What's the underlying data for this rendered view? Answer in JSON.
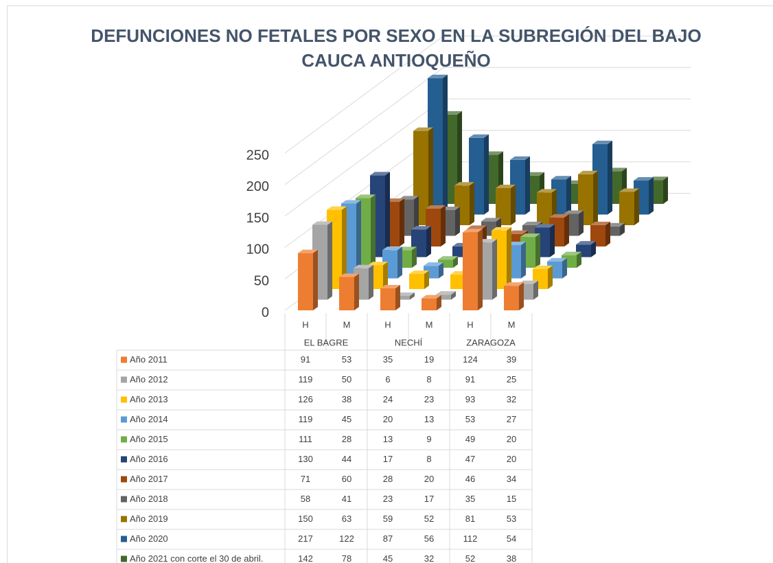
{
  "chart_data": {
    "type": "bar3d",
    "title": "DEFUNCIONES NO FETALES POR SEXO EN LA SUBREGIÓN DEL BAJO CAUCA ANTIOQUEÑO",
    "categories": [
      "H",
      "M",
      "H",
      "M",
      "H",
      "M"
    ],
    "groups": [
      "EL BAGRE",
      "NECHÍ",
      "ZARAGOZA"
    ],
    "ylim": [
      0,
      250
    ],
    "yticks": [
      0,
      50,
      100,
      150,
      200,
      250
    ],
    "grid": true,
    "series": [
      {
        "name": "Año 2011",
        "color": "#ED7D31",
        "values": [
          91,
          53,
          35,
          19,
          124,
          39
        ]
      },
      {
        "name": "Año 2012",
        "color": "#A5A5A5",
        "values": [
          119,
          50,
          6,
          8,
          91,
          25
        ]
      },
      {
        "name": "Año 2013",
        "color": "#FFC000",
        "values": [
          126,
          38,
          24,
          23,
          93,
          32
        ]
      },
      {
        "name": "Año 2014",
        "color": "#5B9BD5",
        "values": [
          119,
          45,
          20,
          13,
          53,
          27
        ]
      },
      {
        "name": "Año 2015",
        "color": "#70AD47",
        "values": [
          111,
          28,
          13,
          9,
          49,
          20
        ]
      },
      {
        "name": "Año 2016",
        "color": "#264478",
        "values": [
          130,
          44,
          17,
          8,
          47,
          20
        ]
      },
      {
        "name": "Año 2017",
        "color": "#9E480E",
        "values": [
          71,
          60,
          28,
          20,
          46,
          34
        ]
      },
      {
        "name": "Año 2018",
        "color": "#636363",
        "values": [
          58,
          41,
          23,
          17,
          35,
          15
        ]
      },
      {
        "name": "Año 2019",
        "color": "#997300",
        "values": [
          150,
          63,
          59,
          52,
          81,
          53
        ]
      },
      {
        "name": "Año 2020",
        "color": "#255E91",
        "values": [
          217,
          122,
          87,
          56,
          112,
          54
        ]
      },
      {
        "name": "Año 2021 con corte el 30 de abril.",
        "color": "#43682B",
        "values": [
          142,
          78,
          45,
          32,
          52,
          38
        ]
      }
    ]
  }
}
